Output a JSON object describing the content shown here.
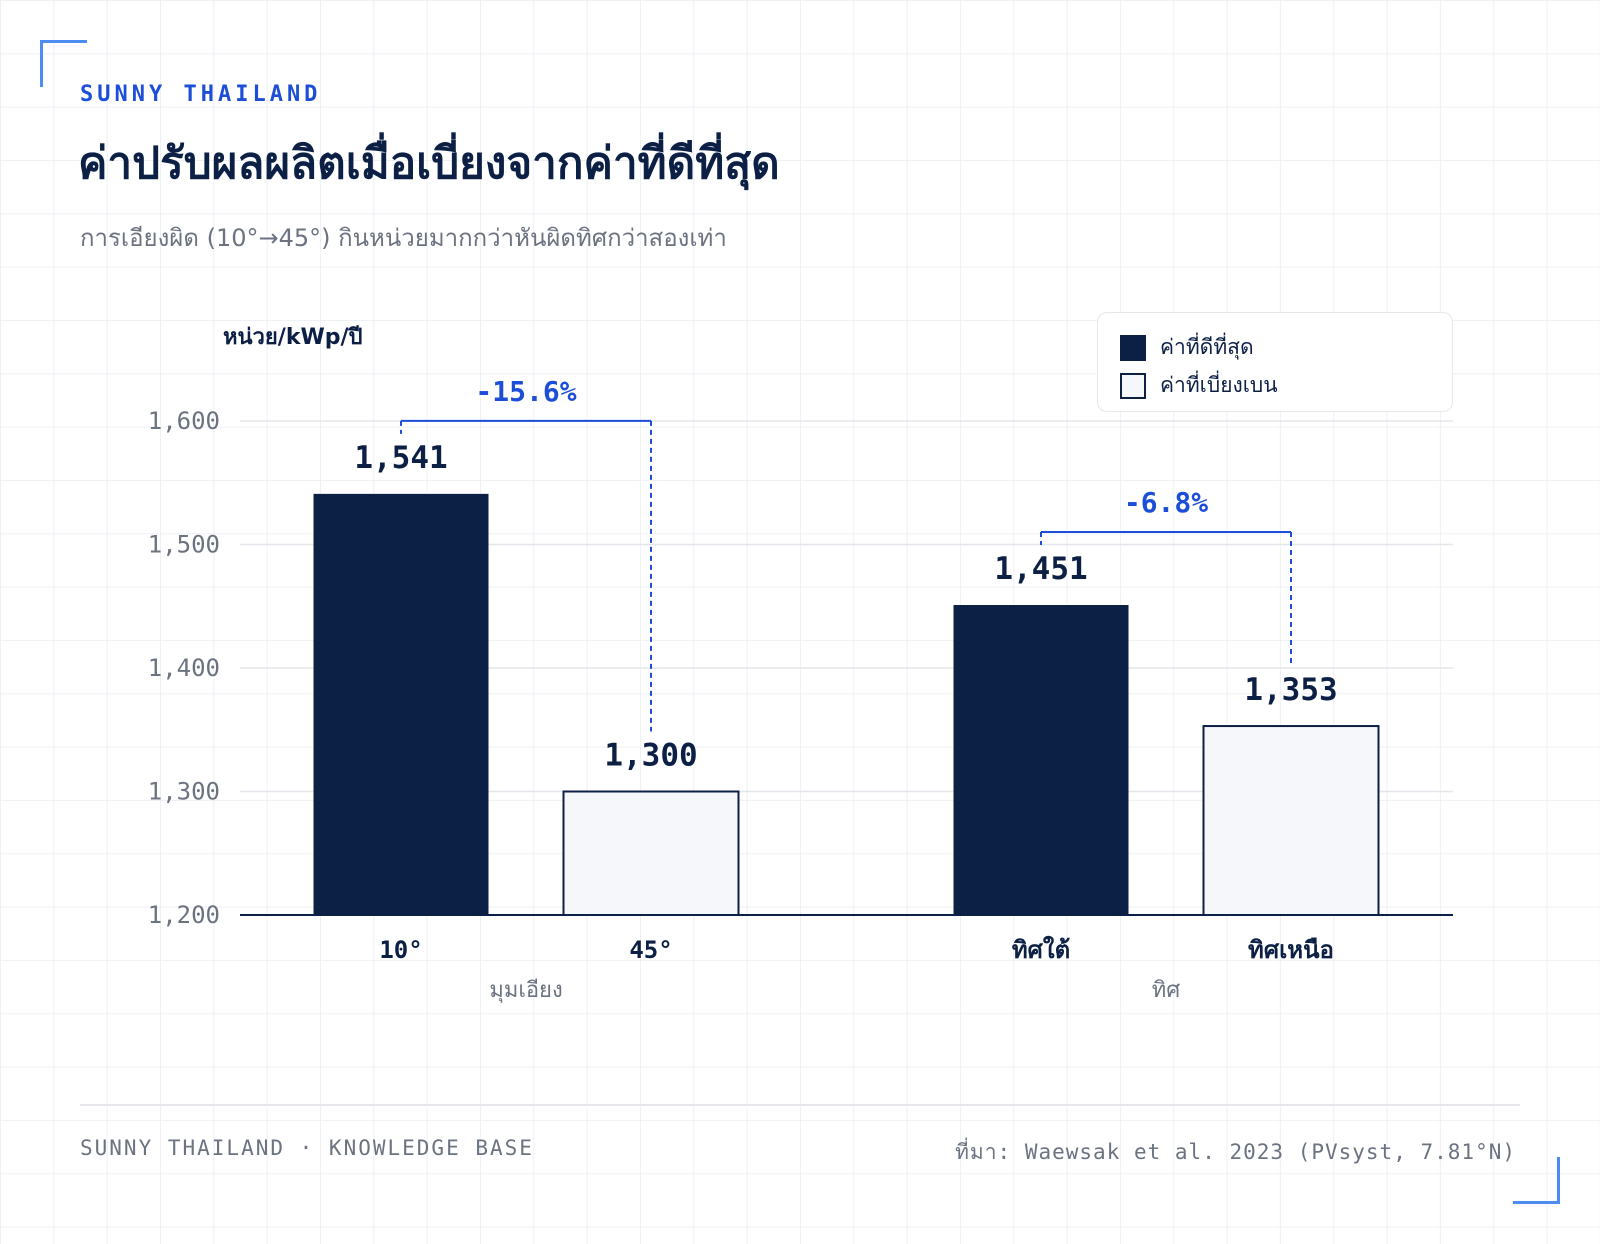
{
  "header": {
    "brand": "SUNNY THAILAND",
    "title": "ค่าปรับผลผลิตเมื่อเบี่ยงจากค่าที่ดีที่สุด",
    "subtitle": "การเอียงผิด (10°→45°) กินหน่วยมากกว่าหันผิดทิศกว่าสองเท่า"
  },
  "legend": {
    "optimal": "ค่าที่ดีที่สุด",
    "deviated": "ค่าที่เบี่ยงเบน"
  },
  "colors": {
    "optimal": "#0c1f44",
    "deviated": "#f5f7fa",
    "accent": "#1d4ed8",
    "corner": "#4d8df0"
  },
  "footer": {
    "left": "SUNNY THAILAND · KNOWLEDGE BASE",
    "right": "ที่มา: Waewsak et al. 2023 (PVsyst, 7.81°N)"
  },
  "chart_data": {
    "type": "bar",
    "ylabel": "หน่วย/kWp/ปี",
    "ylim": [
      1200,
      1600
    ],
    "yticks": [
      1200,
      1300,
      1400,
      1500,
      1600
    ],
    "ytick_labels": [
      "1,200",
      "1,300",
      "1,400",
      "1,500",
      "1,600"
    ],
    "grid": true,
    "legend_position": "top-right",
    "groups": [
      {
        "name": "มุมเอียง",
        "change_label": "-15.6%",
        "bars": [
          {
            "category": "10°",
            "value": 1541,
            "value_label": "1,541",
            "series": "optimal"
          },
          {
            "category": "45°",
            "value": 1300,
            "value_label": "1,300",
            "series": "deviated"
          }
        ]
      },
      {
        "name": "ทิศ",
        "change_label": "-6.8%",
        "bars": [
          {
            "category": "ทิศใต้",
            "value": 1451,
            "value_label": "1,451",
            "series": "optimal"
          },
          {
            "category": "ทิศเหนือ",
            "value": 1353,
            "value_label": "1,353",
            "series": "deviated"
          }
        ]
      }
    ]
  }
}
